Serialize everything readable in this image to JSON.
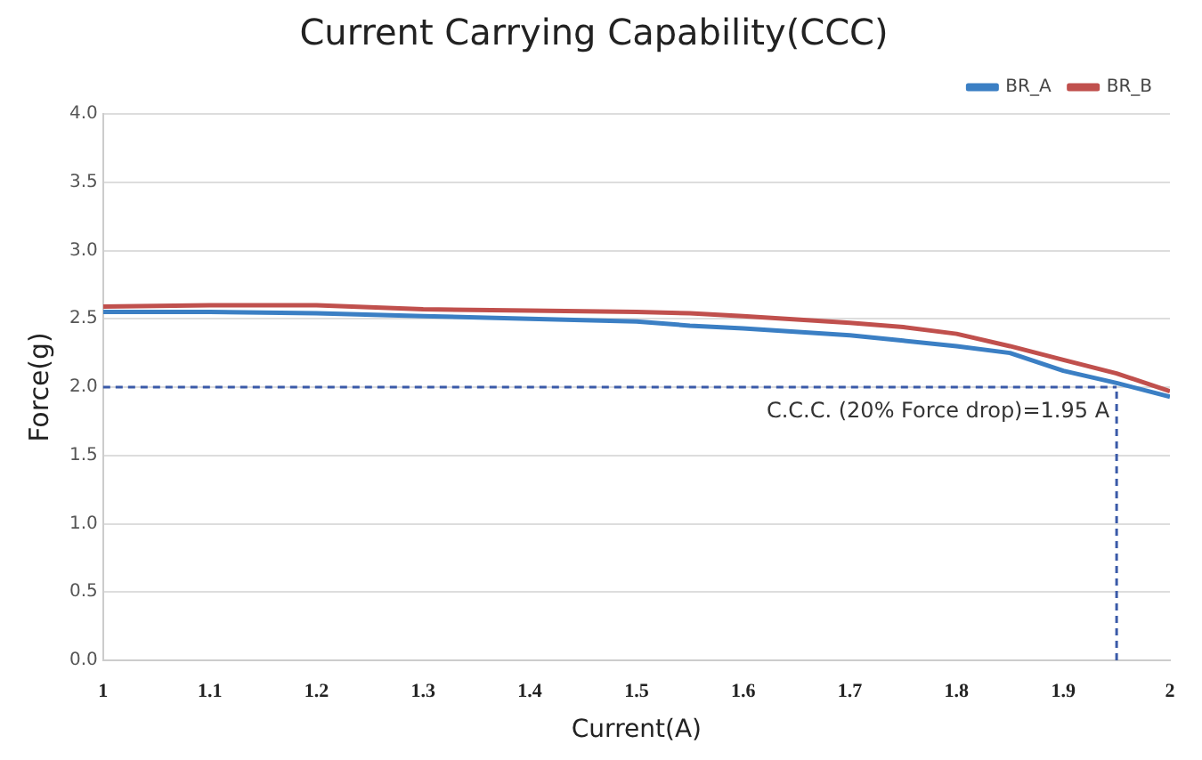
{
  "chart_data": {
    "type": "line",
    "title": "Current Carrying Capability(CCC)",
    "xlabel": "Current(A)",
    "ylabel": "Force(g)",
    "x": [
      1,
      1.1,
      1.2,
      1.3,
      1.4,
      1.5,
      1.55,
      1.6,
      1.7,
      1.75,
      1.8,
      1.85,
      1.9,
      1.95,
      2
    ],
    "series": [
      {
        "name": "BR_A",
        "color": "#3b7fc4",
        "values": [
          2.55,
          2.55,
          2.54,
          2.52,
          2.5,
          2.48,
          2.45,
          2.43,
          2.38,
          2.34,
          2.3,
          2.25,
          2.12,
          2.03,
          1.93
        ]
      },
      {
        "name": "BR_B",
        "color": "#c0504d",
        "values": [
          2.59,
          2.6,
          2.6,
          2.57,
          2.56,
          2.55,
          2.54,
          2.52,
          2.47,
          2.44,
          2.39,
          2.3,
          2.2,
          2.1,
          1.97
        ]
      }
    ],
    "xlim": [
      1,
      2
    ],
    "xticks": [
      1,
      1.1,
      1.2,
      1.3,
      1.4,
      1.5,
      1.6,
      1.7,
      1.8,
      1.9,
      2
    ],
    "ylim": [
      0,
      4
    ],
    "yticks": [
      {
        "value": 0,
        "label": "0.0"
      },
      0.5,
      {
        "value": 1,
        "label": "1.0"
      },
      1.5,
      {
        "value": 2,
        "label": "2.0"
      },
      2.5,
      {
        "value": 3,
        "label": "3.0"
      },
      3.5,
      {
        "value": 4,
        "label": "4.0"
      }
    ],
    "ref_lines": [
      {
        "axis": "y",
        "value": 2,
        "color": "#3a5aa8",
        "line_style": "dashed"
      },
      {
        "axis": "x",
        "value": 1.95,
        "label": "C.C.C. (20% Force drop)=1.95 A",
        "color": "#3a5aa8",
        "line_style": "dashed"
      }
    ],
    "grid": "y",
    "legend": "top right",
    "marker": "none",
    "line_style": "solid"
  }
}
